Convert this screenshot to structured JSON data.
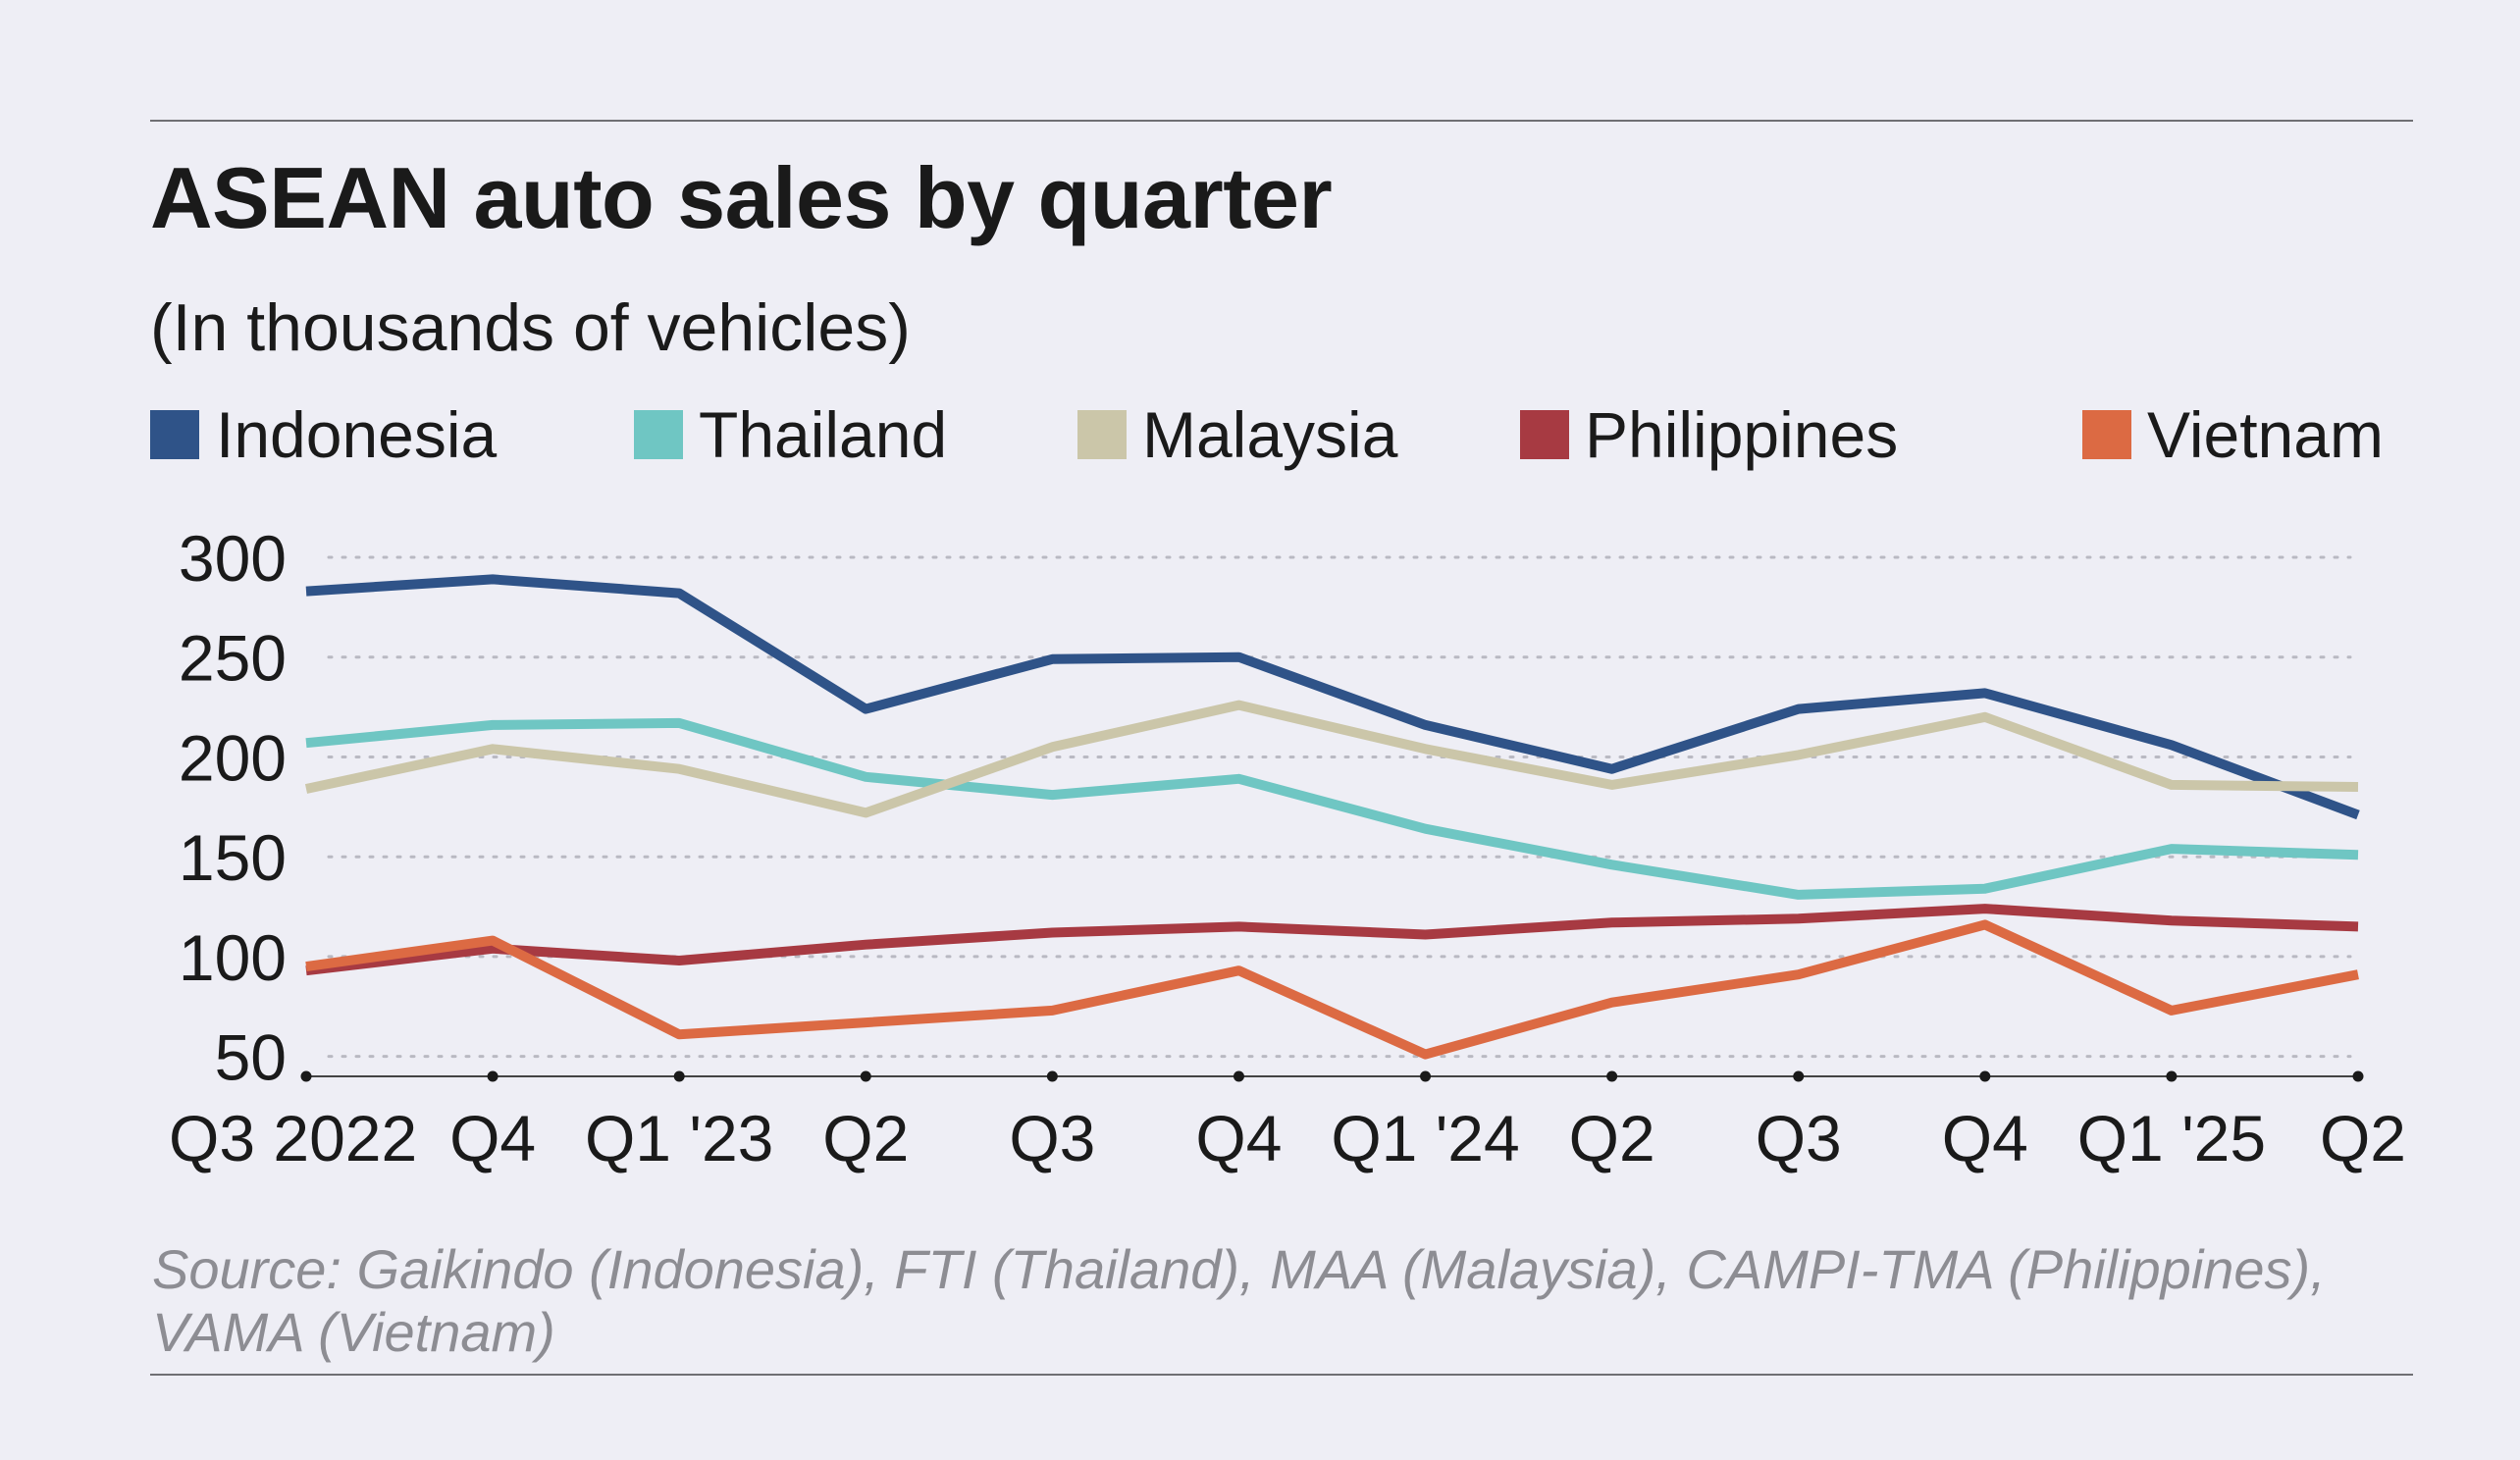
{
  "chart_data": {
    "type": "line",
    "title": "ASEAN auto sales by quarter",
    "subtitle": "(In thousands of vehicles)",
    "categories": [
      "Q3 2022",
      "Q4",
      "Q1 '23",
      "Q2",
      "Q3",
      "Q4",
      "Q1 '24",
      "Q2",
      "Q3",
      "Q4",
      "Q1 '25",
      "Q2"
    ],
    "series": [
      {
        "name": "Indonesia",
        "color": "#2f5388",
        "values": [
          283,
          289,
          282,
          224,
          249,
          250,
          216,
          194,
          224,
          232,
          206,
          171
        ]
      },
      {
        "name": "Thailand",
        "color": "#6fc6c3",
        "values": [
          207,
          216,
          217,
          190,
          181,
          189,
          164,
          146,
          131,
          134,
          154,
          151
        ]
      },
      {
        "name": "Malaysia",
        "color": "#cbc6a9",
        "values": [
          184,
          204,
          194,
          172,
          205,
          226,
          204,
          186,
          201,
          220,
          186,
          185
        ]
      },
      {
        "name": "Philippines",
        "color": "#a73a42",
        "values": [
          93,
          104,
          98,
          106,
          112,
          115,
          111,
          117,
          119,
          124,
          118,
          115
        ]
      },
      {
        "name": "Vietnam",
        "color": "#dc6a43",
        "values": [
          95,
          108,
          61,
          67,
          73,
          93,
          51,
          77,
          91,
          116,
          73,
          91
        ]
      }
    ],
    "ylim": [
      40,
      300
    ],
    "yticks": [
      300,
      250,
      200,
      150,
      100,
      50
    ],
    "ytick_labels": [
      "300",
      "250",
      "200",
      "150",
      "100",
      "50"
    ],
    "grid": "horizontal dotted",
    "legend": "top",
    "xlabel": "",
    "ylabel": ""
  },
  "source": "Source: Gaikindo (Indonesia), FTI (Thailand), MAA (Malaysia), CAMPI-TMA (Philippines), VAMA (Vietnam)"
}
